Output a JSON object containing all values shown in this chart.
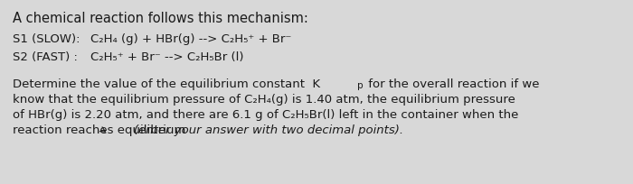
{
  "background_color": "#d8d8d8",
  "text_color": "#1a1a1a",
  "title_line": "A chemical reaction follows this mechanism:",
  "s1_label": "S1 (SLOW):   ",
  "s1_eq": "C₂H₄ (g) + HBr(g) --> C₂H₅⁺ + Br⁻",
  "s2_label": "S2 (FAST) :  ",
  "s2_eq": "C₂H₅⁺ + Br⁻ --> C₂H₅Br (l)",
  "para_line1a": "Determine the value of the equilibrium constant  K",
  "para_line1b": "p",
  "para_line1c": " for the overall reaction if we",
  "para_line2": "know that the equilibrium pressure of C₂H₄(g) is 1.40 atm, the equilibrium pressure",
  "para_line3": "of HBr(g) is 2.20 atm, and there are 6.1 g of C₂H₅Br(l) left in the container when the",
  "para_line4a": "reaction reaches equilibrium ",
  "para_line4b": "(enter your answer with two decimal points).",
  "fs_title": 10.5,
  "fs_body": 9.5,
  "fs_sub": 7.5
}
